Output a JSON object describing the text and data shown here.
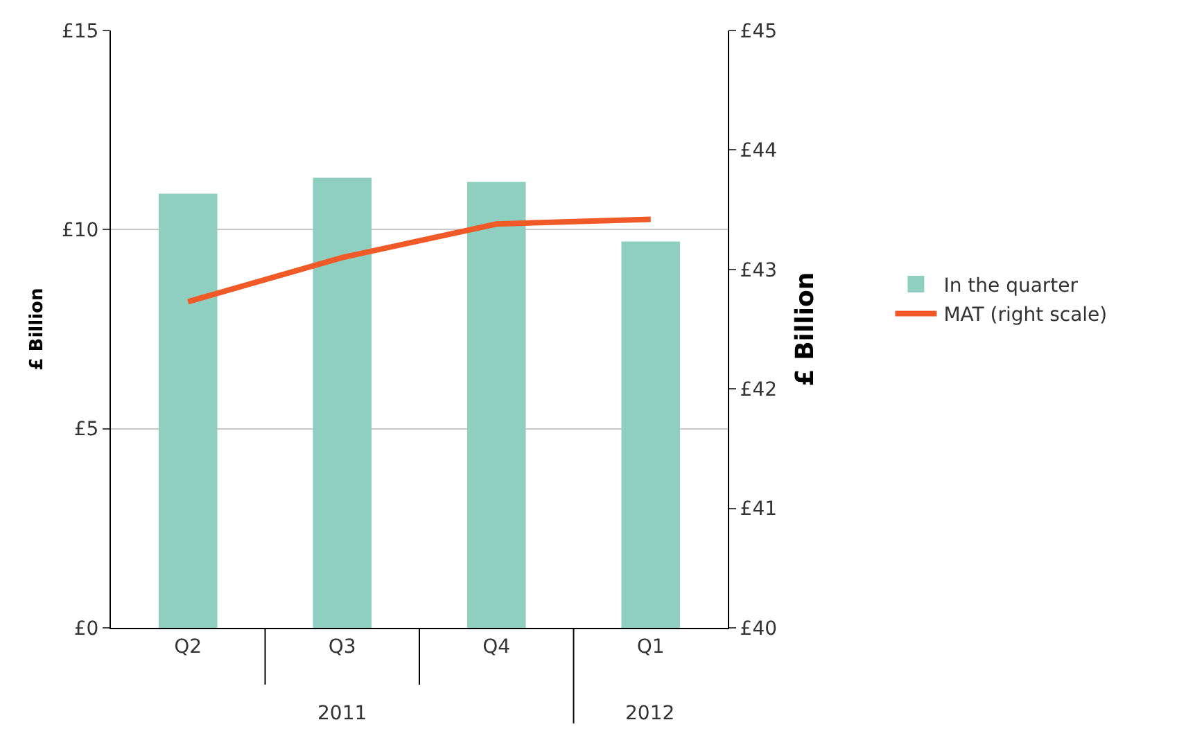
{
  "chart_data": {
    "type": "bar",
    "categories": [
      "Q2",
      "Q3",
      "Q4",
      "Q1"
    ],
    "series": [
      {
        "name": "In the quarter",
        "color": "#8fcfc0",
        "values": [
          10.9,
          11.3,
          11.2,
          9.7
        ]
      },
      {
        "name": "MAT (right scale)",
        "type": "line",
        "axis": "y2",
        "color": "#f05a28",
        "values": [
          42.73,
          43.1,
          43.38,
          43.42
        ]
      }
    ],
    "ylabel": "£ Billion",
    "y2label": "£ Billion",
    "ylim": [
      0,
      15
    ],
    "yticks": [
      {
        "value": 0,
        "label": "£0"
      },
      {
        "value": 5,
        "label": "£5"
      },
      {
        "value": 10,
        "label": "£10"
      },
      {
        "value": 15,
        "label": "£15"
      }
    ],
    "y2lim": [
      40,
      45
    ],
    "y2ticks": [
      {
        "value": 40,
        "label": "£40"
      },
      {
        "value": 41,
        "label": "£41"
      },
      {
        "value": 42,
        "label": "£42"
      },
      {
        "value": 43,
        "label": "£43"
      },
      {
        "value": 44,
        "label": "£44"
      },
      {
        "value": 45,
        "label": "£45"
      }
    ],
    "annotations": [
      "2011",
      "2012"
    ],
    "grid": "y",
    "legend": "right",
    "marker": "none",
    "line_style": "solid"
  }
}
